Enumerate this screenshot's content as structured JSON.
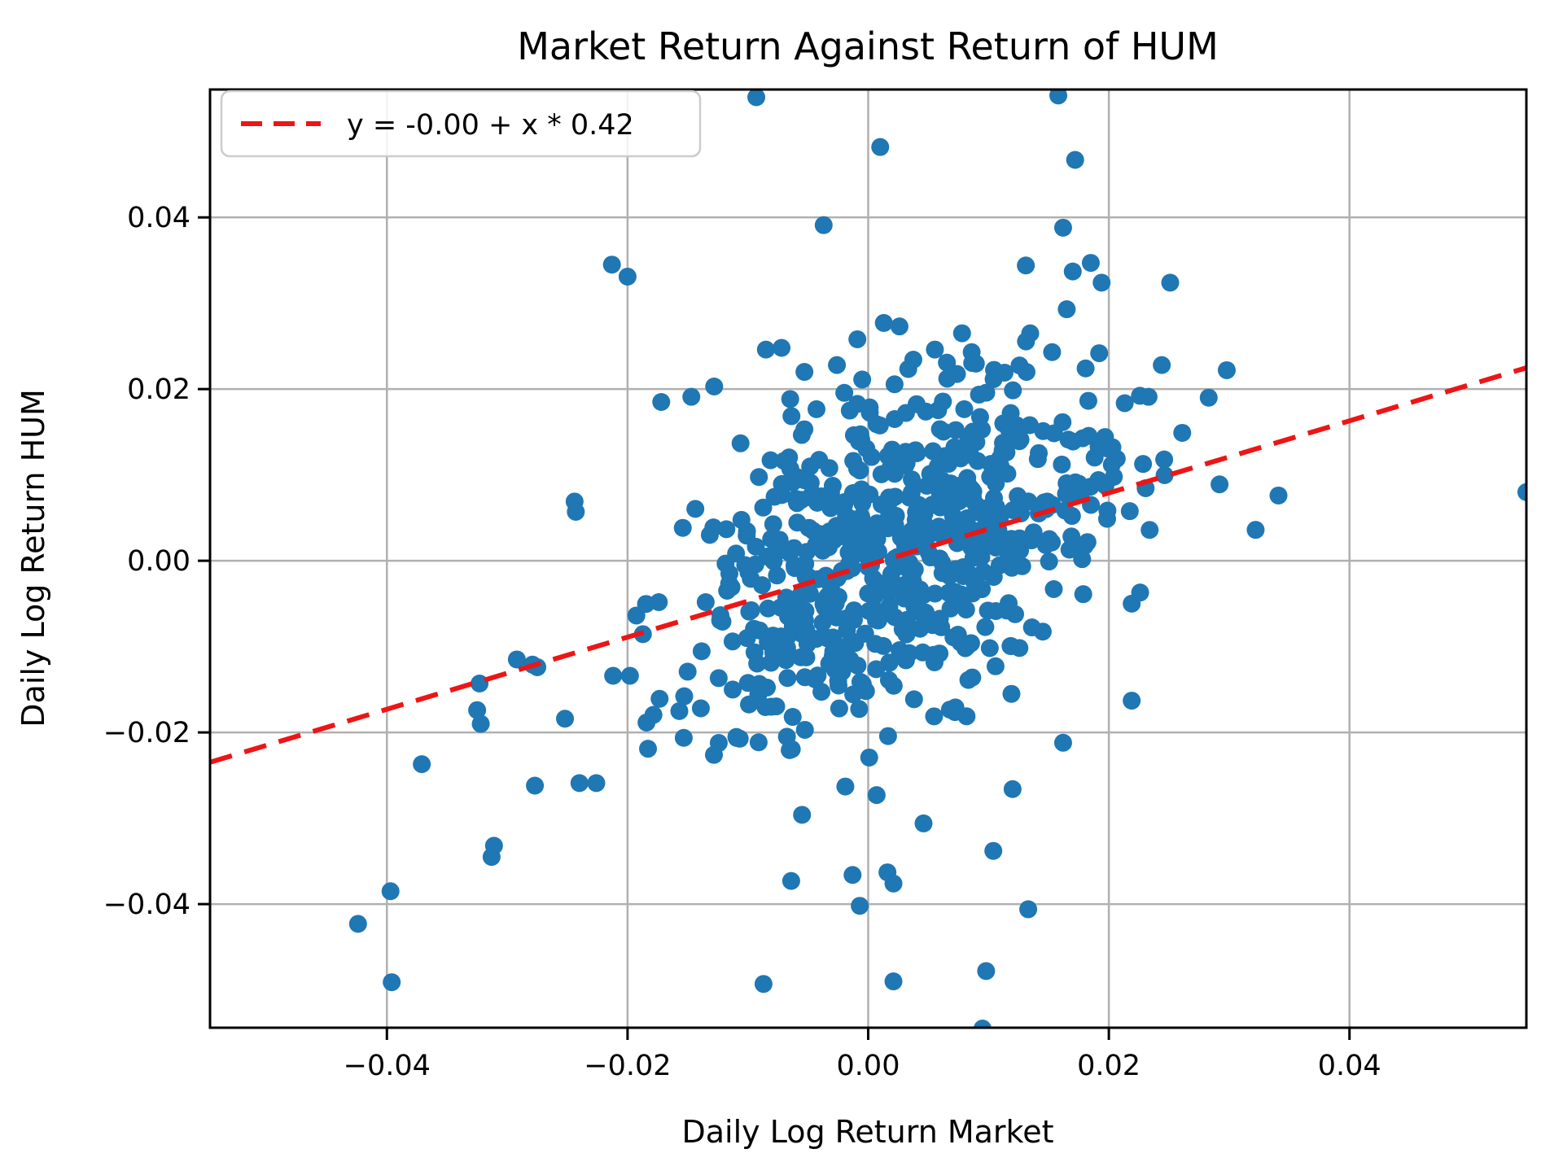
{
  "chart_data": {
    "type": "scatter",
    "title": "Market Return Against Return of HUM",
    "xlabel": "Daily Log Return Market",
    "ylabel": "Daily Log Return HUM",
    "xlim": [
      -0.0547,
      0.0547
    ],
    "ylim": [
      -0.0544,
      0.0549
    ],
    "grid": true,
    "grid_color": "#b0b0b0",
    "spine_color": "#000000",
    "marker_color": "#1f77b4",
    "marker_radius_px": 11,
    "x_ticks": [
      -0.04,
      -0.02,
      0.0,
      0.02,
      0.04
    ],
    "x_tick_labels": [
      "−0.04",
      "−0.02",
      "0.00",
      "0.02",
      "0.04"
    ],
    "y_ticks": [
      -0.04,
      -0.02,
      0.0,
      0.02,
      0.04
    ],
    "y_tick_labels": [
      "−0.04",
      "−0.02",
      "0.00",
      "0.02",
      "0.04"
    ],
    "legend": {
      "label": "y = -0.00 + x * 0.42",
      "position": "upper left",
      "border_color": "#cccccc",
      "background": "#ffffff"
    },
    "regression_line": {
      "slope": 0.42,
      "intercept": -0.0005,
      "color": "#ed1515",
      "style": "dashed",
      "x_range": [
        -0.0547,
        0.0547
      ]
    },
    "n_points_total_estimate": 708,
    "landmark_points": [
      [
        -0.0093,
        0.054
      ],
      [
        0.0158,
        0.0542
      ],
      [
        0.0172,
        0.0467
      ],
      [
        0.001,
        0.0482
      ],
      [
        -0.0037,
        0.0391
      ],
      [
        0.0162,
        0.0388
      ],
      [
        0.0185,
        0.0347
      ],
      [
        0.017,
        0.0337
      ],
      [
        0.0194,
        0.0324
      ],
      [
        0.0251,
        0.0324
      ],
      [
        0.0131,
        0.0344
      ],
      [
        0.0165,
        0.0293
      ],
      [
        -0.0213,
        0.0345
      ],
      [
        -0.02,
        0.0331
      ],
      [
        0.0013,
        0.0277
      ],
      [
        0.0026,
        0.0273
      ],
      [
        -0.0009,
        0.0258
      ],
      [
        0.0078,
        0.0265
      ],
      [
        0.0086,
        0.0243
      ],
      [
        -0.0053,
        0.022
      ],
      [
        -0.0026,
        0.0228
      ],
      [
        -0.0085,
        0.0246
      ],
      [
        -0.0072,
        0.0248
      ],
      [
        0.0244,
        0.0228
      ],
      [
        0.0298,
        0.0222
      ],
      [
        0.0283,
        0.019
      ],
      [
        0.0233,
        0.0191
      ],
      [
        -0.0172,
        0.0185
      ],
      [
        -0.0128,
        0.0203
      ],
      [
        -0.0147,
        0.0191
      ],
      [
        0.0547,
        0.008
      ],
      [
        0.0341,
        0.0076
      ],
      [
        0.0292,
        0.0089
      ],
      [
        0.0322,
        0.0036
      ],
      [
        0.0261,
        0.0149
      ],
      [
        0.0246,
        0.0118
      ],
      [
        0.0226,
        -0.0037
      ],
      [
        0.0219,
        -0.005
      ],
      [
        0.0219,
        -0.0163
      ],
      [
        0.0162,
        -0.0212
      ],
      [
        -0.0244,
        0.0069
      ],
      [
        -0.0243,
        0.0057
      ],
      [
        -0.0292,
        -0.0115
      ],
      [
        -0.0275,
        -0.0124
      ],
      [
        -0.0323,
        -0.0143
      ],
      [
        -0.0279,
        -0.0121
      ],
      [
        -0.0212,
        -0.0134
      ],
      [
        -0.0198,
        -0.0134
      ],
      [
        -0.0325,
        -0.0174
      ],
      [
        -0.0322,
        -0.019
      ],
      [
        -0.0252,
        -0.0184
      ],
      [
        -0.0371,
        -0.0237
      ],
      [
        -0.0277,
        -0.0262
      ],
      [
        -0.024,
        -0.0259
      ],
      [
        -0.0226,
        -0.0259
      ],
      [
        -0.0183,
        -0.0219
      ],
      [
        -0.0311,
        -0.0332
      ],
      [
        -0.0313,
        -0.0345
      ],
      [
        -0.0397,
        -0.0385
      ],
      [
        -0.0424,
        -0.0423
      ],
      [
        -0.0396,
        -0.0491
      ],
      [
        -0.0064,
        -0.0373
      ],
      [
        -0.0013,
        -0.0366
      ],
      [
        0.0016,
        -0.0363
      ],
      [
        0.0021,
        -0.0376
      ],
      [
        -0.0007,
        -0.0402
      ],
      [
        0.0133,
        -0.0406
      ],
      [
        -0.0087,
        -0.0493
      ],
      [
        0.0021,
        -0.049
      ],
      [
        0.0098,
        -0.0478
      ],
      [
        0.0095,
        -0.0545
      ],
      [
        0.0104,
        -0.0338
      ],
      [
        -0.0019,
        -0.0263
      ],
      [
        0.0007,
        -0.0273
      ],
      [
        0.0046,
        -0.0306
      ],
      [
        -0.0055,
        -0.0296
      ],
      [
        0.012,
        -0.0266
      ]
    ],
    "core_cloud": {
      "n": 630,
      "seed": 42,
      "center": [
        0.0018,
        0.0012
      ],
      "std": [
        0.0095,
        0.0105
      ],
      "corr": 0.4,
      "clip_sigma": 2.45
    }
  }
}
